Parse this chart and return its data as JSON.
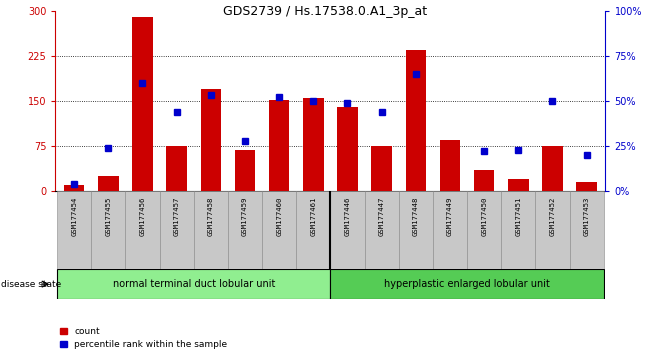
{
  "title": "GDS2739 / Hs.17538.0.A1_3p_at",
  "samples": [
    "GSM177454",
    "GSM177455",
    "GSM177456",
    "GSM177457",
    "GSM177458",
    "GSM177459",
    "GSM177460",
    "GSM177461",
    "GSM177446",
    "GSM177447",
    "GSM177448",
    "GSM177449",
    "GSM177450",
    "GSM177451",
    "GSM177452",
    "GSM177453"
  ],
  "counts": [
    10,
    25,
    290,
    75,
    170,
    68,
    152,
    155,
    140,
    75,
    235,
    85,
    35,
    20,
    75,
    15
  ],
  "percentiles": [
    4,
    24,
    60,
    44,
    53,
    28,
    52,
    50,
    49,
    44,
    65,
    null,
    22,
    23,
    50,
    20
  ],
  "group1_label": "normal terminal duct lobular unit",
  "group2_label": "hyperplastic enlarged lobular unit",
  "group1_count": 8,
  "group2_count": 8,
  "ylim_left": [
    0,
    300
  ],
  "ylim_right": [
    0,
    100
  ],
  "yticks_left": [
    0,
    75,
    150,
    225,
    300
  ],
  "ytick_labels_left": [
    "0",
    "75",
    "150",
    "225",
    "300"
  ],
  "yticks_right": [
    0,
    25,
    50,
    75,
    100
  ],
  "ytick_labels_right": [
    "0%",
    "25%",
    "50%",
    "75%",
    "100%"
  ],
  "bar_color": "#cc0000",
  "dot_color": "#0000cc",
  "bg_color_axes": "#ffffff",
  "tick_bg": "#c8c8c8",
  "group1_color": "#90ee90",
  "group2_color": "#55cc55",
  "legend_count_label": "count",
  "legend_pct_label": "percentile rank within the sample",
  "figsize": [
    6.51,
    3.54
  ],
  "dpi": 100
}
